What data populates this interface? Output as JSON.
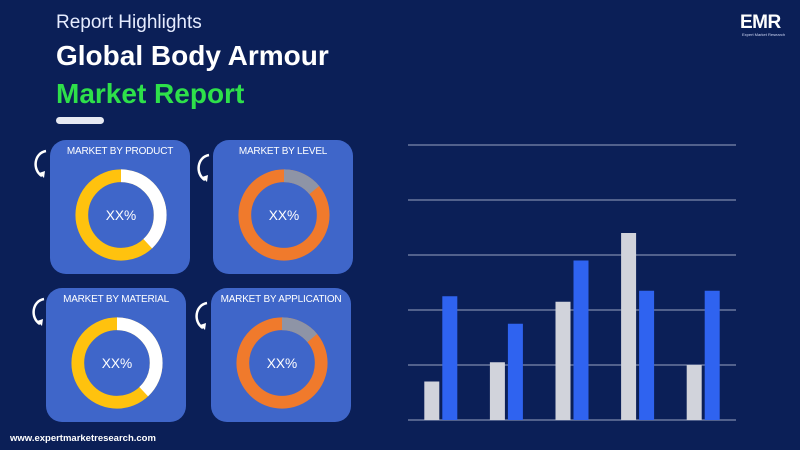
{
  "header": {
    "eyebrow": "Report Highlights",
    "title_line1": "Global Body Armour",
    "title_line2": "Market Report"
  },
  "logo": {
    "text": "EMR",
    "tagline": "Expert Market Research"
  },
  "cards": [
    {
      "title": "MARKET BY PRODUCT",
      "value": "XX%",
      "ring_color": "#ffc20e",
      "accent_color": "#ffffff",
      "accent_fraction": 0.38
    },
    {
      "title": "MARKET BY LEVEL",
      "value": "XX%",
      "ring_color": "#f07a2c",
      "accent_color": "#8e94a6",
      "accent_fraction": 0.14
    },
    {
      "title": "MARKET BY MATERIAL",
      "value": "XX%",
      "ring_color": "#ffc20e",
      "accent_color": "#ffffff",
      "accent_fraction": 0.38
    },
    {
      "title": "MARKET BY APPLICATION",
      "value": "XX%",
      "ring_color": "#f07a2c",
      "accent_color": "#8e94a6",
      "accent_fraction": 0.14
    }
  ],
  "footer": {
    "website": "www.expertmarketresearch.com"
  },
  "chart_data": {
    "type": "bar",
    "categories": [
      "",
      "",
      "",
      "",
      ""
    ],
    "series": [
      {
        "values": [
          1.4,
          2.1,
          4.3,
          6.8,
          2.0
        ],
        "color": "#d1d3db"
      },
      {
        "values": [
          4.5,
          3.5,
          5.8,
          4.7,
          4.7
        ],
        "color": "#2f63f0"
      }
    ],
    "ylim": [
      0,
      10
    ],
    "grid": true,
    "axis_labels_shown": false
  },
  "colors": {
    "background": "#0b1f57",
    "card": "#3f66c9",
    "title_accent": "#2ee04a"
  }
}
